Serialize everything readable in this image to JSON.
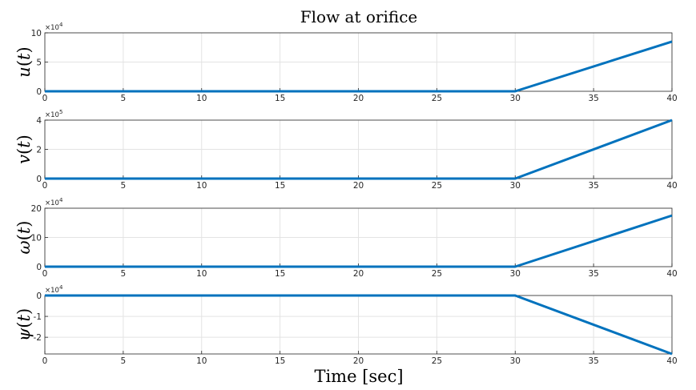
{
  "title": "Flow at orifice",
  "xlabel": "Time [sec]",
  "colors": {
    "line": "#0072BD",
    "grid": "#e3e3e3",
    "axis": "#262626"
  },
  "chart_data": [
    {
      "type": "line",
      "ylabel": "u(t)",
      "ylabel_parts": [
        "u",
        "(",
        "t",
        ")"
      ],
      "multiplier": [
        "×10",
        "4"
      ],
      "x": [
        0,
        30,
        40
      ],
      "y": [
        0,
        0,
        85000
      ],
      "xlim": [
        0,
        40
      ],
      "ylim": [
        0,
        100000
      ],
      "xticks": [
        0,
        5,
        10,
        15,
        20,
        25,
        30,
        35,
        40
      ],
      "xtick_labels": [
        "0",
        "5",
        "10",
        "15",
        "20",
        "25",
        "30",
        "35",
        "40"
      ],
      "yticks": [
        0,
        50000,
        100000
      ],
      "ytick_labels": [
        "0",
        "5",
        "10"
      ],
      "grid": true
    },
    {
      "type": "line",
      "ylabel": "v(t)",
      "ylabel_parts": [
        "v",
        "(",
        "t",
        ")"
      ],
      "multiplier": [
        "×10",
        "5"
      ],
      "x": [
        0,
        30,
        40
      ],
      "y": [
        0,
        0,
        400000
      ],
      "xlim": [
        0,
        40
      ],
      "ylim": [
        0,
        400000
      ],
      "xticks": [
        0,
        5,
        10,
        15,
        20,
        25,
        30,
        35,
        40
      ],
      "xtick_labels": [
        "0",
        "5",
        "10",
        "15",
        "20",
        "25",
        "30",
        "35",
        "40"
      ],
      "yticks": [
        0,
        200000,
        400000
      ],
      "ytick_labels": [
        "0",
        "2",
        "4"
      ],
      "grid": true
    },
    {
      "type": "line",
      "ylabel": "ω(t)",
      "ylabel_parts": [
        "ω",
        "(",
        "t",
        ")"
      ],
      "multiplier": [
        "×10",
        "4"
      ],
      "x": [
        0,
        30,
        40
      ],
      "y": [
        0,
        0,
        175000
      ],
      "xlim": [
        0,
        40
      ],
      "ylim": [
        0,
        200000
      ],
      "xticks": [
        0,
        5,
        10,
        15,
        20,
        25,
        30,
        35,
        40
      ],
      "xtick_labels": [
        "0",
        "5",
        "10",
        "15",
        "20",
        "25",
        "30",
        "35",
        "40"
      ],
      "yticks": [
        0,
        100000,
        200000
      ],
      "ytick_labels": [
        "0",
        "10",
        "20"
      ],
      "grid": true
    },
    {
      "type": "line",
      "ylabel": "ψ(t)",
      "ylabel_parts": [
        "ψ",
        "(",
        "t",
        ")"
      ],
      "multiplier": [
        "×10",
        "4"
      ],
      "x": [
        0,
        30,
        40
      ],
      "y": [
        0,
        0,
        -28000
      ],
      "xlim": [
        0,
        40
      ],
      "ylim": [
        -28000,
        0
      ],
      "xticks": [
        0,
        5,
        10,
        15,
        20,
        25,
        30,
        35,
        40
      ],
      "xtick_labels": [
        "0",
        "5",
        "10",
        "15",
        "20",
        "25",
        "30",
        "35",
        "40"
      ],
      "yticks": [
        -20000,
        -10000,
        0
      ],
      "ytick_labels": [
        "-2",
        "-1",
        "0"
      ],
      "grid": true
    }
  ]
}
